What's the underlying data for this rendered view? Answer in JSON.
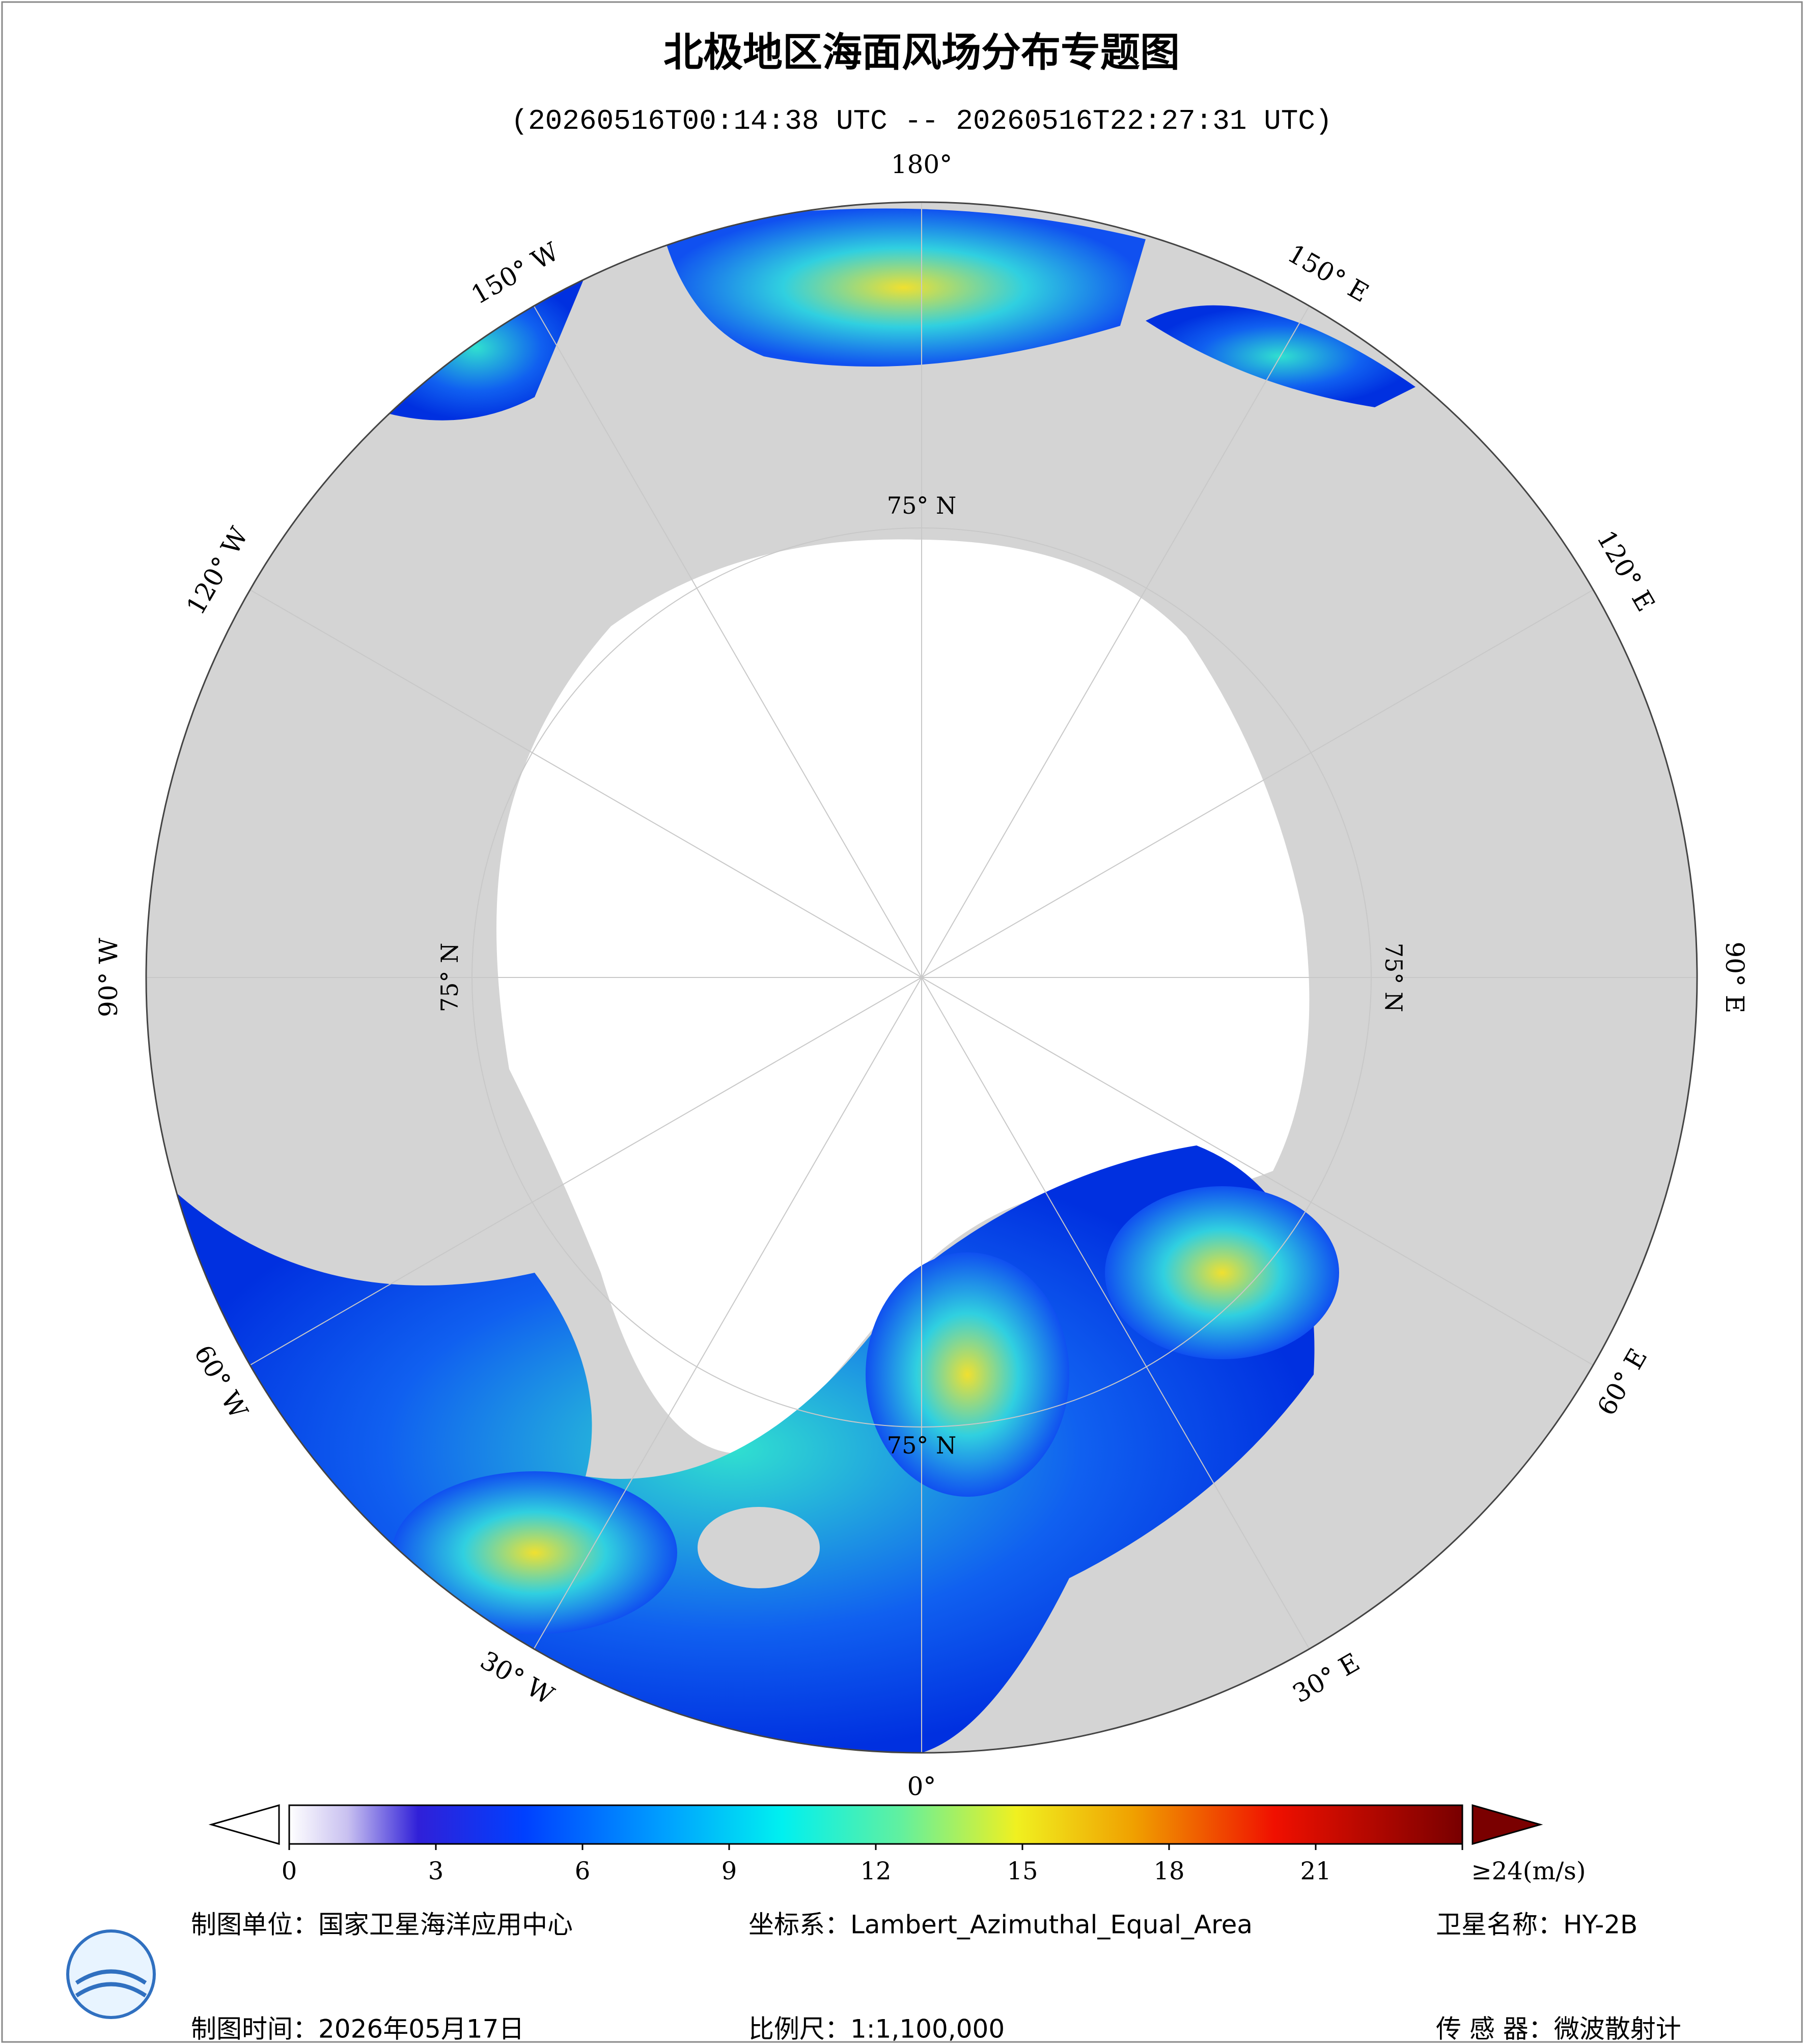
{
  "header": {
    "title": "北极地区海面风场分布专题图",
    "subtitle": "(20260516T00:14:38 UTC -- 20260516T22:27:31 UTC)"
  },
  "map": {
    "longitude_labels": [
      "180°",
      "150° E",
      "120° E",
      "90° E",
      "60° E",
      "30° E",
      "0°",
      "30° W",
      "60° W",
      "90° W",
      "120° W",
      "150° W"
    ],
    "latitude_labels": [
      "75° N",
      "75° N",
      "75° N",
      "75° N"
    ]
  },
  "colorbar": {
    "lim": [
      0,
      24
    ],
    "ticks": [
      0,
      3,
      6,
      9,
      12,
      15,
      18,
      21,
      {
        "value": 24,
        "label": "≥24(m/s)"
      }
    ]
  },
  "footer": {
    "organization": "制图单位：国家卫星海洋应用中心",
    "coordinate_system": "坐标系：Lambert_Azimuthal_Equal_Area",
    "satellite": "卫星名称：HY-2B",
    "date": "制图时间：2026年05月17日",
    "scale": "比例尺：1:1,100,000",
    "sensor": "传 感 器：微波散射计"
  }
}
